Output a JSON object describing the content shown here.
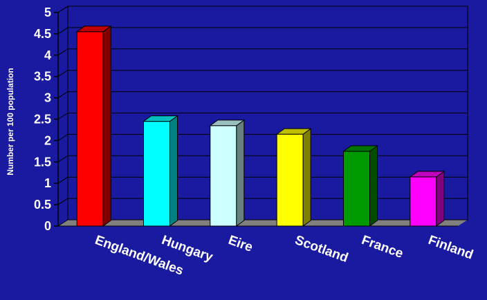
{
  "chart_data": {
    "type": "bar",
    "title": "",
    "xlabel": "",
    "ylabel": "Number per 100 population",
    "ylim": [
      0,
      5
    ],
    "yticks": [
      "0",
      "0.5",
      "1",
      "1.5",
      "2",
      "2.5",
      "3",
      "3.5",
      "4",
      "4.5",
      "5"
    ],
    "grid": true,
    "legend": "none",
    "categories": [
      "England/Wales",
      "Hungary",
      "Eire",
      "Scotland",
      "France",
      "Finland"
    ],
    "values": [
      4.55,
      2.45,
      2.35,
      2.15,
      1.75,
      1.15
    ],
    "colors": [
      "#ff0000",
      "#00ffff",
      "#ccffff",
      "#ffff00",
      "#009900",
      "#ff00ff"
    ],
    "background_color": "#1a1aa0",
    "floor_color": "#808080"
  }
}
